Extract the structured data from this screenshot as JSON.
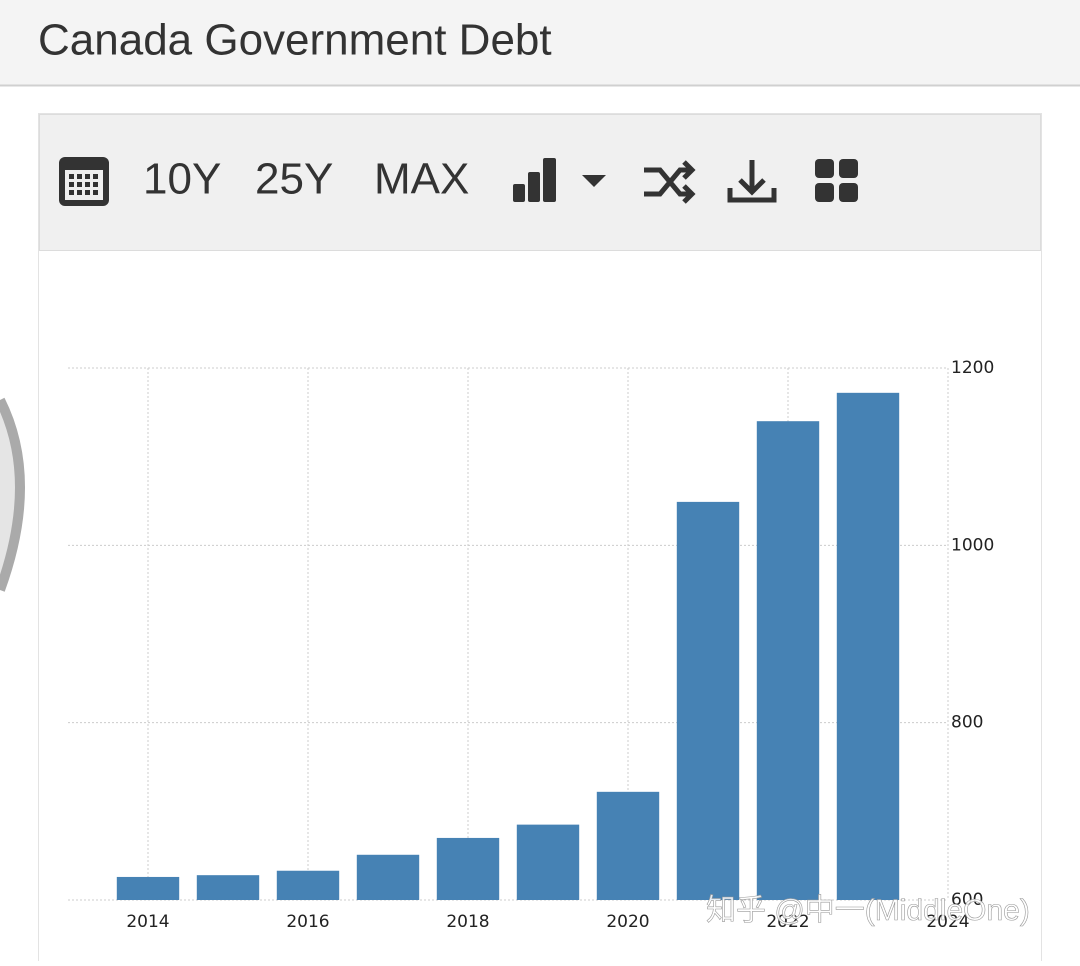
{
  "header": {
    "title": "Canada Government Debt"
  },
  "toolbar": {
    "buttons": [
      "10Y",
      "25Y",
      "MAX"
    ]
  },
  "watermark": "知乎 @中一(MiddleOne)",
  "chart_data": {
    "type": "bar",
    "x": [
      2014,
      2015,
      2016,
      2017,
      2018,
      2019,
      2020,
      2021,
      2022,
      2023
    ],
    "values": [
      626,
      628,
      633,
      651,
      670,
      685,
      722,
      1049,
      1140,
      1172
    ],
    "color": "#4682b4",
    "xlim": [
      2013,
      2024
    ],
    "xticks": [
      2014,
      2016,
      2018,
      2020,
      2022,
      2024
    ],
    "ylim": [
      600,
      1200
    ],
    "yticks": [
      600,
      800,
      1000,
      1200
    ],
    "grid": true
  }
}
